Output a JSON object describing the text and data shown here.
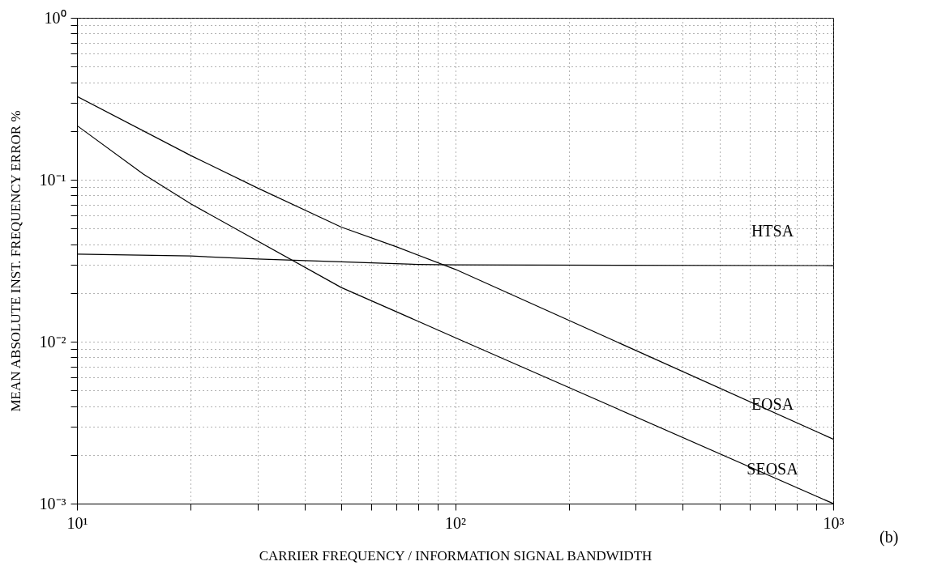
{
  "chart_data": {
    "type": "line",
    "xlabel": "CARRIER FREQUENCY  /  INFORMATION SIGNAL BANDWIDTH",
    "ylabel": "MEAN  ABSOLUTE  INST. FREQUENCY  ERROR %",
    "log": "xy",
    "grid": true,
    "line_style": "solid",
    "marker": "none",
    "xlim": [
      10,
      1000
    ],
    "ylim": [
      0.001,
      1
    ],
    "xticks": [
      {
        "value": 10,
        "label": "10¹"
      },
      {
        "value": 20,
        "label": null
      },
      {
        "value": 30,
        "label": null
      },
      {
        "value": 40,
        "label": null
      },
      {
        "value": 50,
        "label": null
      },
      {
        "value": 60,
        "label": null
      },
      {
        "value": 70,
        "label": null
      },
      {
        "value": 80,
        "label": null
      },
      {
        "value": 90,
        "label": null
      },
      {
        "value": 100,
        "label": "10²"
      },
      {
        "value": 200,
        "label": null
      },
      {
        "value": 300,
        "label": null
      },
      {
        "value": 400,
        "label": null
      },
      {
        "value": 500,
        "label": null
      },
      {
        "value": 600,
        "label": null
      },
      {
        "value": 700,
        "label": null
      },
      {
        "value": 800,
        "label": null
      },
      {
        "value": 900,
        "label": null
      },
      {
        "value": 1000,
        "label": "10³"
      }
    ],
    "yticks": [
      {
        "value": 0.001,
        "label": "10⁻³"
      },
      {
        "value": 0.002,
        "label": null
      },
      {
        "value": 0.003,
        "label": null
      },
      {
        "value": 0.004,
        "label": null
      },
      {
        "value": 0.005,
        "label": null
      },
      {
        "value": 0.006,
        "label": null
      },
      {
        "value": 0.007,
        "label": null
      },
      {
        "value": 0.008,
        "label": null
      },
      {
        "value": 0.009,
        "label": null
      },
      {
        "value": 0.01,
        "label": "10⁻²"
      },
      {
        "value": 0.02,
        "label": null
      },
      {
        "value": 0.03,
        "label": null
      },
      {
        "value": 0.04,
        "label": null
      },
      {
        "value": 0.05,
        "label": null
      },
      {
        "value": 0.06,
        "label": null
      },
      {
        "value": 0.07,
        "label": null
      },
      {
        "value": 0.08,
        "label": null
      },
      {
        "value": 0.09,
        "label": null
      },
      {
        "value": 0.1,
        "label": "10⁻¹"
      },
      {
        "value": 0.2,
        "label": null
      },
      {
        "value": 0.3,
        "label": null
      },
      {
        "value": 0.4,
        "label": null
      },
      {
        "value": 0.5,
        "label": null
      },
      {
        "value": 0.6,
        "label": null
      },
      {
        "value": 0.7,
        "label": null
      },
      {
        "value": 0.8,
        "label": null
      },
      {
        "value": 0.9,
        "label": null
      },
      {
        "value": 1,
        "label": "10⁰"
      }
    ],
    "series": [
      {
        "name": "HTSA",
        "color": "#000000",
        "x": [
          10,
          20,
          30,
          50,
          80,
          100,
          1000
        ],
        "values": [
          0.0347,
          0.0338,
          0.0324,
          0.0311,
          0.03,
          0.0298,
          0.0295
        ]
      },
      {
        "name": "EOSA",
        "color": "#000000",
        "x": [
          10,
          20,
          30,
          50,
          70,
          100,
          1000
        ],
        "values": [
          0.327,
          0.141,
          0.089,
          0.051,
          0.0385,
          0.028,
          0.0025
        ]
      },
      {
        "name": "SEOSA",
        "color": "#000000",
        "x": [
          10,
          15,
          20,
          50,
          100,
          1000
        ],
        "values": [
          0.216,
          0.108,
          0.071,
          0.0216,
          0.0106,
          0.001
        ]
      }
    ],
    "annotations": [
      "(b)"
    ]
  }
}
